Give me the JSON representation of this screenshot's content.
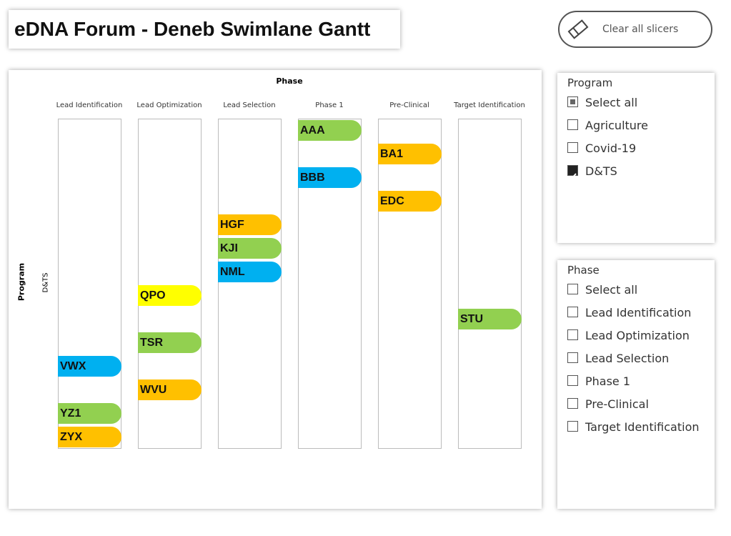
{
  "header": {
    "title": "eDNA Forum - Deneb Swimlane Gantt",
    "button": "Clear all slicers"
  },
  "gantt": {
    "column_title": "Phase",
    "row_title": "Program",
    "row_label": "D&TS",
    "lanes": [
      {
        "name": "Lead Identification",
        "items": [
          {
            "label": "VWX",
            "color": "#00b0f0"
          },
          {
            "label": "YZ1",
            "color": "#92d050"
          },
          {
            "label": "ZYX",
            "color": "#ffc000"
          }
        ]
      },
      {
        "name": "Lead Optimization",
        "items": [
          {
            "label": "QPO",
            "color": "#ffff00"
          },
          {
            "label": "TSR",
            "color": "#92d050"
          },
          {
            "label": "WVU",
            "color": "#ffc000"
          }
        ]
      },
      {
        "name": "Lead Selection",
        "items": [
          {
            "label": "HGF",
            "color": "#ffc000"
          },
          {
            "label": "KJI",
            "color": "#92d050"
          },
          {
            "label": "NML",
            "color": "#00b0f0"
          }
        ]
      },
      {
        "name": "Phase 1",
        "items": [
          {
            "label": "AAA",
            "color": "#92d050"
          },
          {
            "label": "BBB",
            "color": "#00b0f0"
          }
        ]
      },
      {
        "name": "Pre-Clinical",
        "items": [
          {
            "label": "BA1",
            "color": "#ffc000"
          },
          {
            "label": "EDC",
            "color": "#ffc000"
          }
        ]
      },
      {
        "name": "Target Identification",
        "items": [
          {
            "label": "STU",
            "color": "#92d050"
          }
        ]
      }
    ]
  },
  "slicers": [
    {
      "title": "Program",
      "options": [
        {
          "label": "Select all",
          "state": "partial"
        },
        {
          "label": "Agriculture",
          "state": "unchecked"
        },
        {
          "label": "Covid-19",
          "state": "unchecked"
        },
        {
          "label": "D&TS",
          "state": "checked"
        }
      ]
    },
    {
      "title": "Phase",
      "options": [
        {
          "label": "Select all",
          "state": "unchecked"
        },
        {
          "label": "Lead Identification",
          "state": "unchecked"
        },
        {
          "label": "Lead Optimization",
          "state": "unchecked"
        },
        {
          "label": "Lead Selection",
          "state": "unchecked"
        },
        {
          "label": "Phase 1",
          "state": "unchecked"
        },
        {
          "label": "Pre-Clinical",
          "state": "unchecked"
        },
        {
          "label": "Target Identification",
          "state": "unchecked"
        }
      ]
    }
  ]
}
